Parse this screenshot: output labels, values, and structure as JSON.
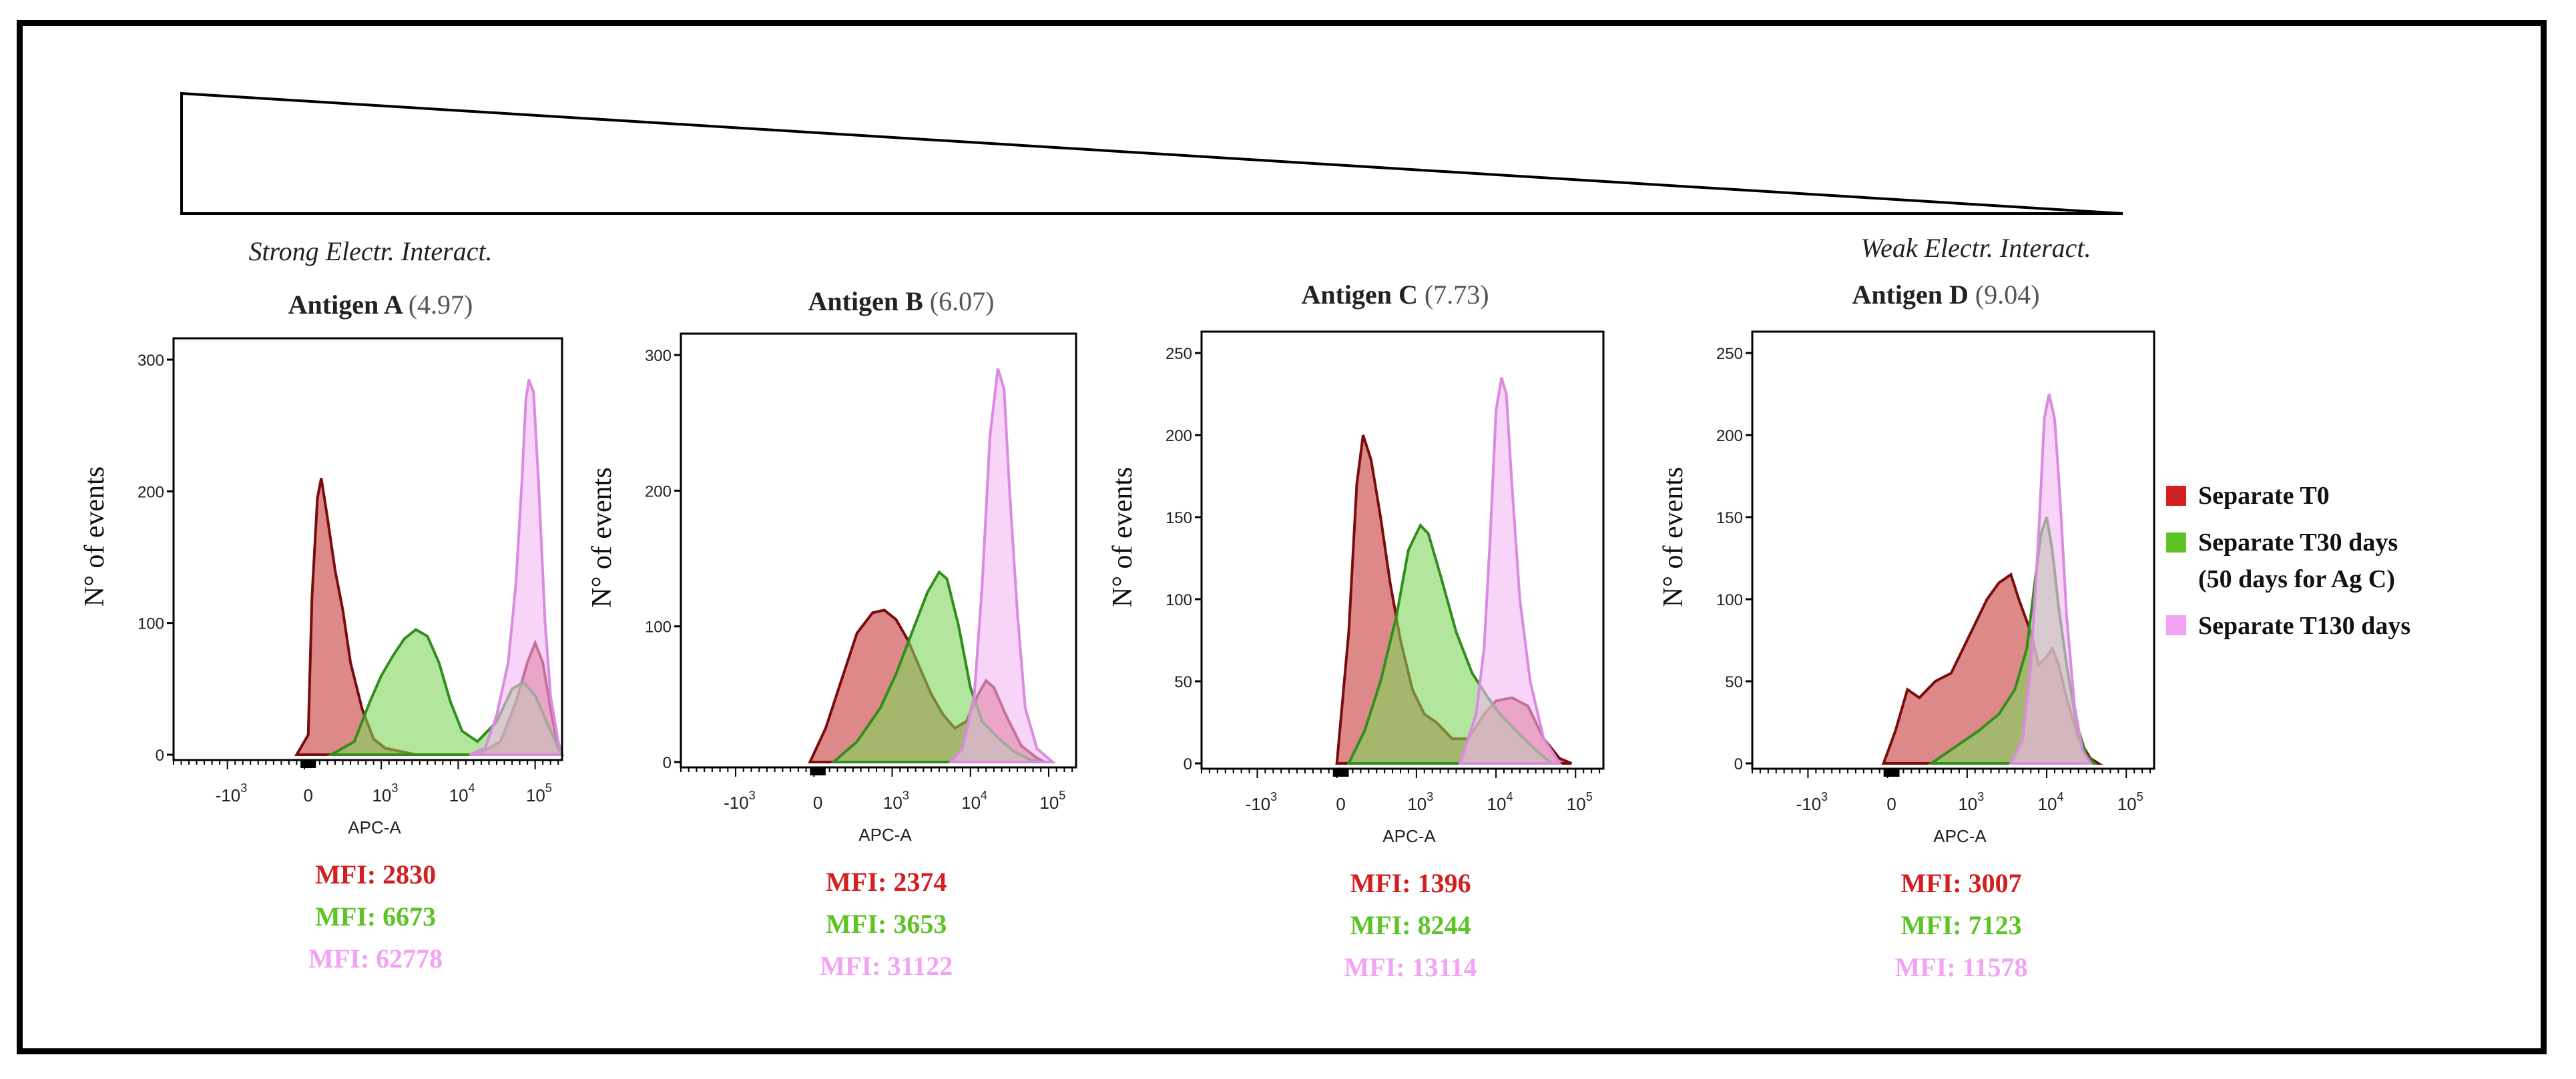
{
  "figure": {
    "gradient_labels": {
      "strong": "Strong Electr. Interact.",
      "weak": "Weak Electr. Interact."
    },
    "colors": {
      "t0": "#d21f1f",
      "t30": "#5cc424",
      "t130": "#f3a3f3",
      "t0_fill": "#c83a3a",
      "t30_fill": "#7fd65a",
      "t130_fill": "#f2b8f4",
      "t0_stroke": "#7a0c0c",
      "t30_stroke": "#2f8f1a",
      "t130_stroke": "#d98be0"
    }
  },
  "legend": {
    "items": [
      {
        "key": "t0",
        "line1": "Separate T0",
        "line2": ""
      },
      {
        "key": "t30",
        "line1": "Separate T30 days",
        "line2": "(50 days for Ag C)"
      },
      {
        "key": "t130",
        "line1": "Separate T130 days",
        "line2": ""
      }
    ]
  },
  "chart_data": [
    {
      "type": "area",
      "title": "Antigen A",
      "title_value": "(4.97)",
      "xlabel": "APC-A",
      "ylabel": "N° of events",
      "ylim": [
        0,
        300
      ],
      "yticks": [
        0,
        100,
        200,
        300
      ],
      "xticks": [
        {
          "label": "-10",
          "sup": "3",
          "v": -1
        },
        {
          "label": "0",
          "sup": "",
          "v": 0
        },
        {
          "label": "10",
          "sup": "3",
          "v": 1
        },
        {
          "label": "10",
          "sup": "4",
          "v": 2
        },
        {
          "label": "10",
          "sup": "5",
          "v": 3
        }
      ],
      "xlim": [
        -1.75,
        3.3
      ],
      "series": [
        {
          "name": "Separate T0",
          "key": "t0",
          "points": [
            [
              -0.15,
              0
            ],
            [
              0.0,
              15
            ],
            [
              0.05,
              120
            ],
            [
              0.12,
              195
            ],
            [
              0.17,
              210
            ],
            [
              0.25,
              180
            ],
            [
              0.35,
              140
            ],
            [
              0.45,
              110
            ],
            [
              0.55,
              70
            ],
            [
              0.7,
              35
            ],
            [
              0.85,
              12
            ],
            [
              1.0,
              5
            ],
            [
              1.4,
              0
            ],
            [
              2.2,
              0
            ],
            [
              2.5,
              10
            ],
            [
              2.7,
              40
            ],
            [
              2.85,
              70
            ],
            [
              2.95,
              85
            ],
            [
              3.05,
              70
            ],
            [
              3.15,
              35
            ],
            [
              3.25,
              5
            ],
            [
              3.3,
              0
            ]
          ]
        },
        {
          "name": "Separate T30 days",
          "key": "t30",
          "points": [
            [
              0.3,
              0
            ],
            [
              0.6,
              10
            ],
            [
              0.8,
              40
            ],
            [
              0.95,
              60
            ],
            [
              1.1,
              75
            ],
            [
              1.25,
              88
            ],
            [
              1.4,
              95
            ],
            [
              1.55,
              90
            ],
            [
              1.7,
              70
            ],
            [
              1.85,
              40
            ],
            [
              2.0,
              18
            ],
            [
              2.2,
              10
            ],
            [
              2.45,
              25
            ],
            [
              2.65,
              50
            ],
            [
              2.8,
              55
            ],
            [
              2.95,
              45
            ],
            [
              3.1,
              25
            ],
            [
              3.25,
              5
            ],
            [
              3.3,
              0
            ]
          ]
        },
        {
          "name": "Separate T130 days",
          "key": "t130",
          "points": [
            [
              2.1,
              0
            ],
            [
              2.3,
              5
            ],
            [
              2.45,
              30
            ],
            [
              2.6,
              70
            ],
            [
              2.7,
              130
            ],
            [
              2.78,
              210
            ],
            [
              2.83,
              270
            ],
            [
              2.87,
              285
            ],
            [
              2.93,
              275
            ],
            [
              3.0,
              200
            ],
            [
              3.08,
              100
            ],
            [
              3.15,
              45
            ],
            [
              3.25,
              10
            ],
            [
              3.3,
              0
            ]
          ]
        }
      ],
      "mfi": [
        {
          "key": "t0",
          "text": "MFI: 2830"
        },
        {
          "key": "t30",
          "text": "MFI: 6673"
        },
        {
          "key": "t130",
          "text": "MFI: 62778"
        }
      ]
    },
    {
      "type": "area",
      "title": "Antigen B",
      "title_value": "(6.07)",
      "xlabel": "APC-A",
      "ylabel": "N° of events",
      "ylim": [
        0,
        300
      ],
      "yticks": [
        0,
        100,
        200,
        300
      ],
      "xticks": [
        {
          "label": "-10",
          "sup": "3",
          "v": -1
        },
        {
          "label": "0",
          "sup": "",
          "v": 0
        },
        {
          "label": "10",
          "sup": "3",
          "v": 1
        },
        {
          "label": "10",
          "sup": "4",
          "v": 2
        },
        {
          "label": "10",
          "sup": "5",
          "v": 3
        }
      ],
      "xlim": [
        -1.75,
        3.3
      ],
      "series": [
        {
          "name": "Separate T0",
          "key": "t0",
          "points": [
            [
              -0.1,
              0
            ],
            [
              0.1,
              25
            ],
            [
              0.3,
              60
            ],
            [
              0.5,
              95
            ],
            [
              0.7,
              110
            ],
            [
              0.85,
              112
            ],
            [
              1.0,
              105
            ],
            [
              1.15,
              90
            ],
            [
              1.3,
              70
            ],
            [
              1.45,
              50
            ],
            [
              1.6,
              35
            ],
            [
              1.75,
              25
            ],
            [
              1.9,
              30
            ],
            [
              2.05,
              50
            ],
            [
              2.15,
              60
            ],
            [
              2.25,
              55
            ],
            [
              2.4,
              35
            ],
            [
              2.6,
              12
            ],
            [
              2.8,
              3
            ],
            [
              2.9,
              0
            ]
          ]
        },
        {
          "name": "Separate T30 days",
          "key": "t30",
          "points": [
            [
              0.2,
              0
            ],
            [
              0.5,
              15
            ],
            [
              0.8,
              40
            ],
            [
              1.0,
              65
            ],
            [
              1.2,
              95
            ],
            [
              1.4,
              125
            ],
            [
              1.55,
              140
            ],
            [
              1.65,
              135
            ],
            [
              1.8,
              100
            ],
            [
              1.95,
              55
            ],
            [
              2.1,
              30
            ],
            [
              2.3,
              18
            ],
            [
              2.5,
              8
            ],
            [
              2.7,
              2
            ],
            [
              2.85,
              0
            ]
          ]
        },
        {
          "name": "Separate T130 days",
          "key": "t130",
          "points": [
            [
              1.7,
              0
            ],
            [
              1.85,
              10
            ],
            [
              2.0,
              50
            ],
            [
              2.1,
              130
            ],
            [
              2.2,
              240
            ],
            [
              2.3,
              290
            ],
            [
              2.38,
              275
            ],
            [
              2.45,
              200
            ],
            [
              2.55,
              110
            ],
            [
              2.65,
              40
            ],
            [
              2.8,
              10
            ],
            [
              3.0,
              0
            ]
          ]
        }
      ],
      "mfi": [
        {
          "key": "t0",
          "text": "MFI: 2374"
        },
        {
          "key": "t30",
          "text": "MFI: 3653"
        },
        {
          "key": "t130",
          "text": "MFI: 31122"
        }
      ]
    },
    {
      "type": "area",
      "title": "Antigen C",
      "title_value": "(7.73)",
      "xlabel": "APC-A",
      "ylabel": "N° of events",
      "ylim": [
        0,
        250
      ],
      "yticks": [
        0,
        50,
        100,
        150,
        200,
        250
      ],
      "xticks": [
        {
          "label": "-10",
          "sup": "3",
          "v": -1
        },
        {
          "label": "0",
          "sup": "",
          "v": 0
        },
        {
          "label": "10",
          "sup": "3",
          "v": 1
        },
        {
          "label": "10",
          "sup": "4",
          "v": 2
        },
        {
          "label": "10",
          "sup": "5",
          "v": 3
        }
      ],
      "xlim": [
        -1.75,
        3.3
      ],
      "series": [
        {
          "name": "Separate T0",
          "key": "t0",
          "points": [
            [
              -0.05,
              0
            ],
            [
              0.1,
              80
            ],
            [
              0.2,
              170
            ],
            [
              0.28,
              200
            ],
            [
              0.38,
              185
            ],
            [
              0.5,
              150
            ],
            [
              0.62,
              110
            ],
            [
              0.75,
              75
            ],
            [
              0.9,
              45
            ],
            [
              1.05,
              30
            ],
            [
              1.2,
              25
            ],
            [
              1.4,
              15
            ],
            [
              1.6,
              15
            ],
            [
              1.8,
              30
            ],
            [
              1.95,
              38
            ],
            [
              2.15,
              40
            ],
            [
              2.35,
              35
            ],
            [
              2.55,
              15
            ],
            [
              2.75,
              3
            ],
            [
              2.9,
              0
            ]
          ]
        },
        {
          "name": "Separate T30 days",
          "key": "t30",
          "points": [
            [
              0.1,
              0
            ],
            [
              0.3,
              20
            ],
            [
              0.5,
              50
            ],
            [
              0.7,
              90
            ],
            [
              0.85,
              130
            ],
            [
              1.0,
              145
            ],
            [
              1.1,
              140
            ],
            [
              1.25,
              115
            ],
            [
              1.45,
              80
            ],
            [
              1.65,
              55
            ],
            [
              1.85,
              40
            ],
            [
              2.0,
              30
            ],
            [
              2.2,
              20
            ],
            [
              2.45,
              8
            ],
            [
              2.65,
              0
            ]
          ]
        },
        {
          "name": "Separate T130 days",
          "key": "t130",
          "points": [
            [
              1.5,
              0
            ],
            [
              1.6,
              15
            ],
            [
              1.7,
              30
            ],
            [
              1.8,
              70
            ],
            [
              1.88,
              140
            ],
            [
              1.95,
              215
            ],
            [
              2.02,
              235
            ],
            [
              2.08,
              225
            ],
            [
              2.15,
              170
            ],
            [
              2.25,
              100
            ],
            [
              2.38,
              50
            ],
            [
              2.55,
              15
            ],
            [
              2.75,
              0
            ]
          ]
        }
      ],
      "mfi": [
        {
          "key": "t0",
          "text": "MFI: 1396"
        },
        {
          "key": "t30",
          "text": "MFI: 8244"
        },
        {
          "key": "t130",
          "text": "MFI: 13114"
        }
      ]
    },
    {
      "type": "area",
      "title": "Antigen D",
      "title_value": "(9.04)",
      "xlabel": "APC-A",
      "ylabel": "N° of events",
      "ylim": [
        0,
        250
      ],
      "yticks": [
        0,
        50,
        100,
        150,
        200,
        250
      ],
      "xticks": [
        {
          "label": "-10",
          "sup": "3",
          "v": -1
        },
        {
          "label": "0",
          "sup": "",
          "v": 0
        },
        {
          "label": "10",
          "sup": "3",
          "v": 1
        },
        {
          "label": "10",
          "sup": "4",
          "v": 2
        },
        {
          "label": "10",
          "sup": "5",
          "v": 3
        }
      ],
      "xlim": [
        -1.75,
        3.3
      ],
      "series": [
        {
          "name": "Separate T0",
          "key": "t0",
          "points": [
            [
              -0.1,
              0
            ],
            [
              0.05,
              20
            ],
            [
              0.2,
              45
            ],
            [
              0.35,
              40
            ],
            [
              0.55,
              50
            ],
            [
              0.75,
              55
            ],
            [
              0.9,
              70
            ],
            [
              1.05,
              85
            ],
            [
              1.2,
              100
            ],
            [
              1.35,
              110
            ],
            [
              1.5,
              115
            ],
            [
              1.6,
              100
            ],
            [
              1.75,
              80
            ],
            [
              1.85,
              60
            ],
            [
              1.95,
              65
            ],
            [
              2.02,
              70
            ],
            [
              2.1,
              60
            ],
            [
              2.2,
              40
            ],
            [
              2.35,
              15
            ],
            [
              2.5,
              3
            ],
            [
              2.6,
              0
            ]
          ]
        },
        {
          "name": "Separate T30 days",
          "key": "t30",
          "points": [
            [
              0.5,
              0
            ],
            [
              0.8,
              10
            ],
            [
              1.1,
              20
            ],
            [
              1.35,
              30
            ],
            [
              1.55,
              45
            ],
            [
              1.7,
              70
            ],
            [
              1.8,
              110
            ],
            [
              1.88,
              140
            ],
            [
              1.95,
              150
            ],
            [
              2.02,
              130
            ],
            [
              2.1,
              95
            ],
            [
              2.2,
              60
            ],
            [
              2.32,
              25
            ],
            [
              2.45,
              5
            ],
            [
              2.55,
              0
            ]
          ]
        },
        {
          "name": "Separate T130 days",
          "key": "t130",
          "points": [
            [
              1.5,
              0
            ],
            [
              1.65,
              15
            ],
            [
              1.75,
              60
            ],
            [
              1.85,
              140
            ],
            [
              1.92,
              210
            ],
            [
              1.98,
              225
            ],
            [
              2.05,
              210
            ],
            [
              2.12,
              160
            ],
            [
              2.2,
              90
            ],
            [
              2.3,
              35
            ],
            [
              2.4,
              8
            ],
            [
              2.5,
              0
            ]
          ]
        }
      ],
      "mfi": [
        {
          "key": "t0",
          "text": "MFI: 3007"
        },
        {
          "key": "t30",
          "text": "MFI: 7123"
        },
        {
          "key": "t130",
          "text": "MFI: 11578"
        }
      ]
    }
  ]
}
